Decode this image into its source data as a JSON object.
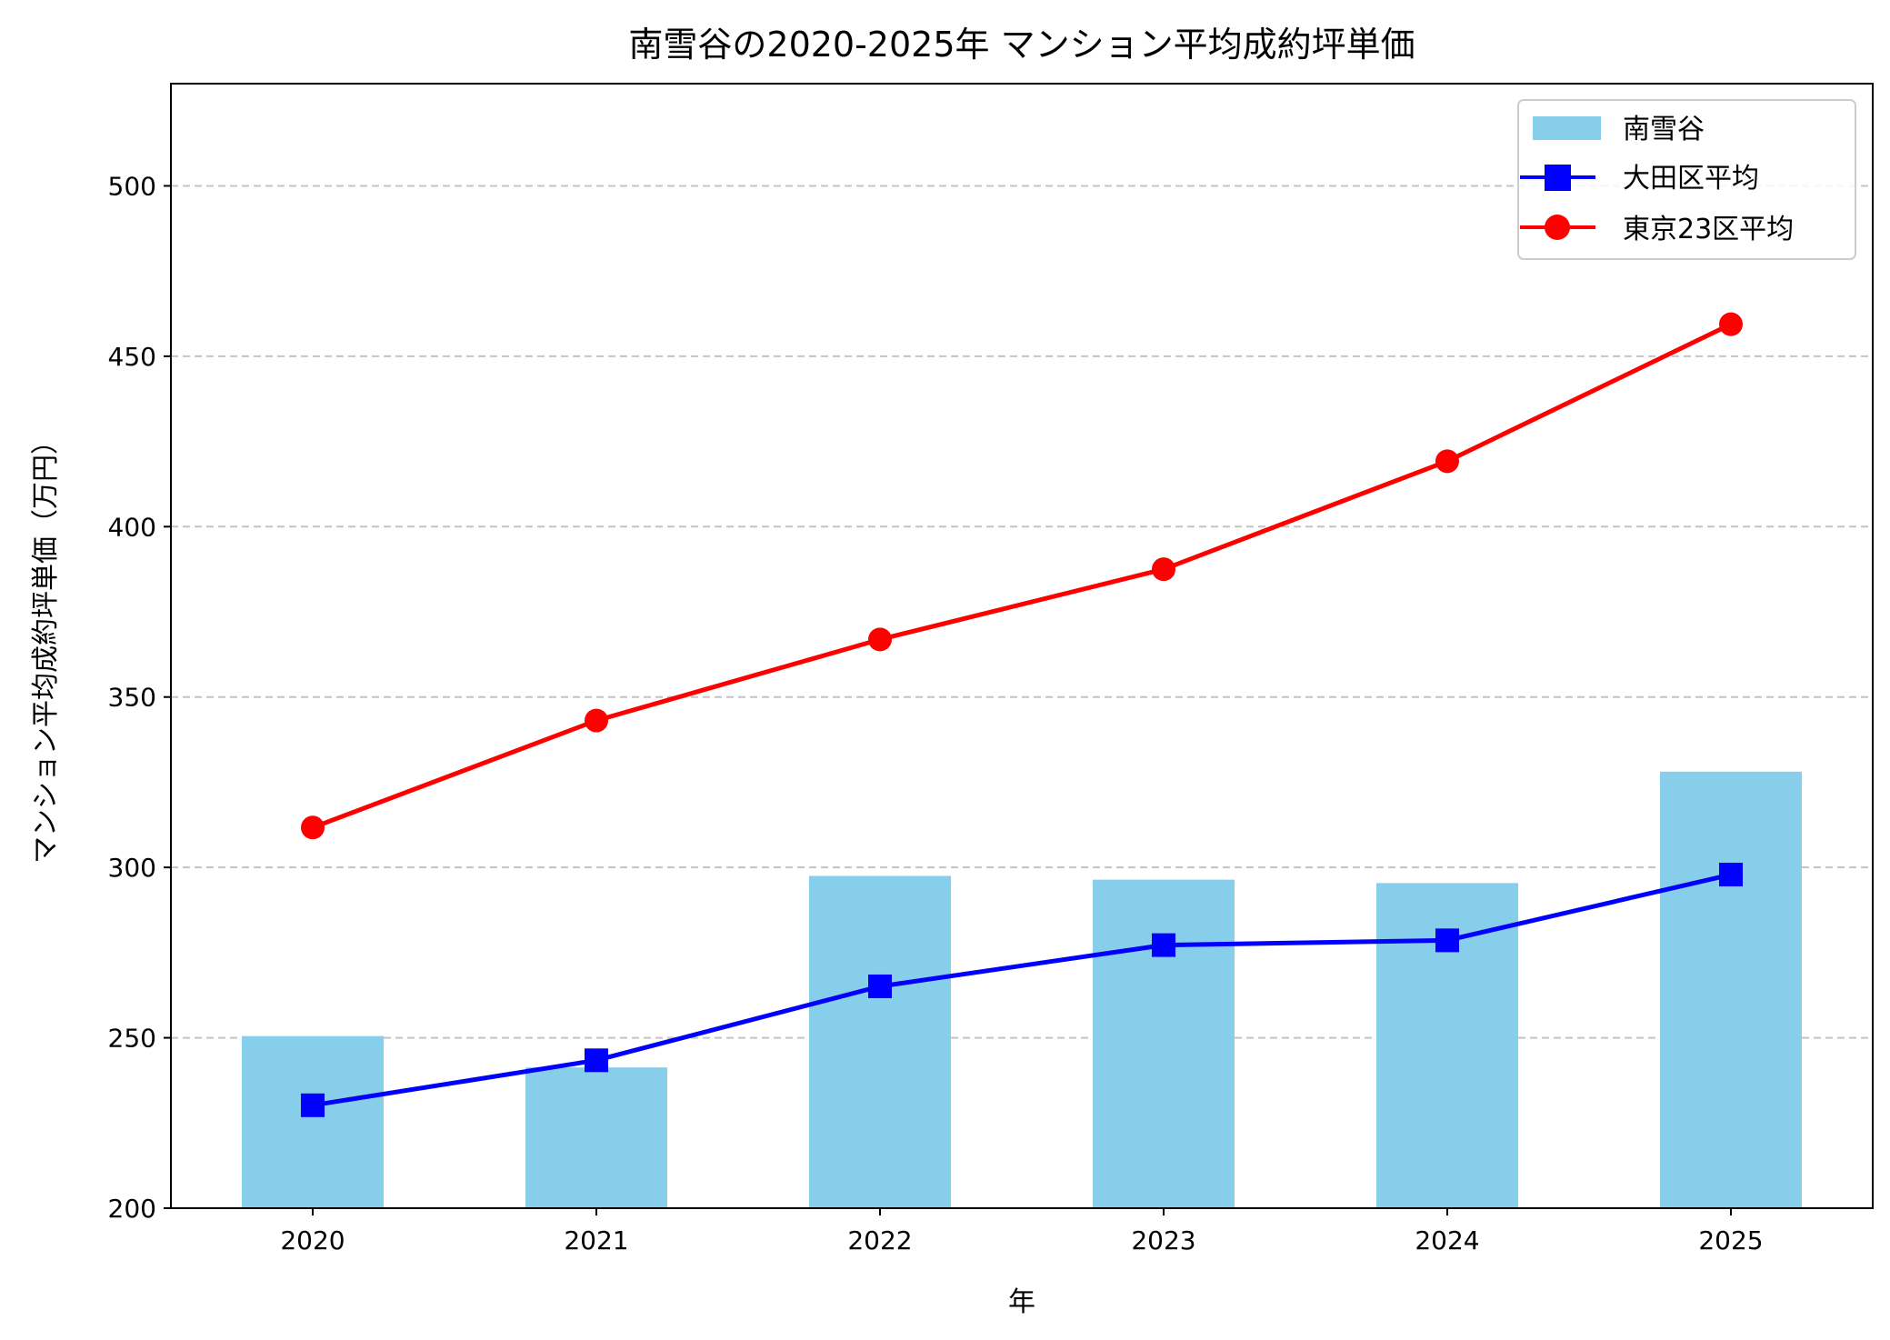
{
  "chart_data": {
    "type": "bar+line",
    "title": "南雪谷の2020-2025年 マンション平均成約坪単価",
    "xlabel": "年",
    "ylabel": "マンション平均成約坪単価（万円）",
    "categories": [
      "2020",
      "2021",
      "2022",
      "2023",
      "2024",
      "2025"
    ],
    "ylim": [
      200,
      530
    ],
    "yticks": [
      200,
      250,
      300,
      350,
      400,
      450,
      500
    ],
    "grid": "y dashed",
    "legend_position": "top-right",
    "series": [
      {
        "name": "南雪谷",
        "kind": "bar",
        "color": "#87CEEB",
        "values": [
          250.5,
          241.3,
          297.5,
          296.4,
          295.4,
          328.1
        ]
      },
      {
        "name": "大田区平均",
        "kind": "line",
        "marker": "square",
        "color": "#0000FF",
        "values": [
          230.2,
          243.4,
          265.1,
          277.2,
          278.6,
          297.9
        ]
      },
      {
        "name": "東京23区平均",
        "kind": "line",
        "marker": "circle",
        "color": "#FF0000",
        "values": [
          311.7,
          343.1,
          366.9,
          387.5,
          419.2,
          459.4
        ]
      }
    ]
  }
}
